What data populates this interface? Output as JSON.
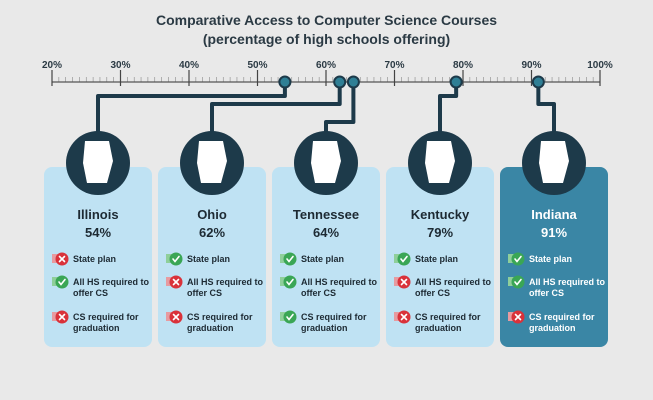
{
  "title": "Comparative Access to Computer Science Courses",
  "subtitle": "(percentage of high schools offering)",
  "scale": {
    "xlim": [
      20,
      100
    ],
    "xticks": [
      {
        "value": 20,
        "label": "20%"
      },
      {
        "value": 30,
        "label": "30%"
      },
      {
        "value": 40,
        "label": "40%"
      },
      {
        "value": 50,
        "label": "50%"
      },
      {
        "value": 60,
        "label": "60%"
      },
      {
        "value": 70,
        "label": "70%"
      },
      {
        "value": 80,
        "label": "80%"
      },
      {
        "value": 90,
        "label": "90%"
      },
      {
        "value": 100,
        "label": "100%"
      }
    ]
  },
  "criteria": [
    "State plan",
    "All HS required to offer CS",
    "CS required for graduation"
  ],
  "states": [
    {
      "name": "Illinois",
      "value": 54,
      "value_label": "54%",
      "checks": [
        false,
        true,
        false
      ]
    },
    {
      "name": "Ohio",
      "value": 62,
      "value_label": "62%",
      "checks": [
        true,
        false,
        false
      ]
    },
    {
      "name": "Tennessee",
      "value": 64,
      "value_label": "64%",
      "checks": [
        true,
        true,
        true
      ]
    },
    {
      "name": "Kentucky",
      "value": 79,
      "value_label": "79%",
      "checks": [
        true,
        false,
        false
      ]
    },
    {
      "name": "Indiana",
      "value": 91,
      "value_label": "91%",
      "checks": [
        true,
        true,
        false
      ]
    }
  ]
}
